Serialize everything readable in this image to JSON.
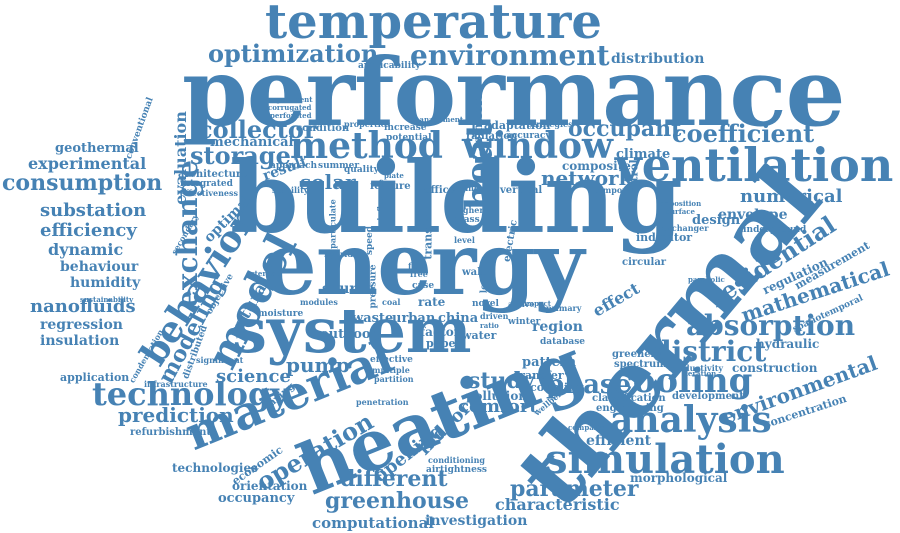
{
  "style": {
    "text_color": "#4682b4",
    "background": "#ffffff"
  },
  "words": [
    {
      "text": "performance",
      "rank": 1
    },
    {
      "text": "building",
      "rank": 1
    },
    {
      "text": "thermal",
      "rank": 1
    },
    {
      "text": "energy",
      "rank": 1
    },
    {
      "text": "heating",
      "rank": 2
    },
    {
      "text": "system",
      "rank": 2
    },
    {
      "text": "temperature",
      "rank": 2
    },
    {
      "text": "ventilation",
      "rank": 2
    },
    {
      "text": "material",
      "rank": 2
    },
    {
      "text": "simulation",
      "rank": 2
    },
    {
      "text": "method",
      "rank": 3
    },
    {
      "text": "window",
      "rank": 3
    },
    {
      "text": "model",
      "rank": 3
    },
    {
      "text": "behavior",
      "rank": 3
    },
    {
      "text": "cooling",
      "rank": 3
    },
    {
      "text": "analysis",
      "rank": 3
    },
    {
      "text": "environment",
      "rank": 3
    },
    {
      "text": "technology",
      "rank": 3
    },
    {
      "text": "heat",
      "rank": 3
    },
    {
      "text": "absorption",
      "rank": 4
    },
    {
      "text": "exchange",
      "rank": 4
    },
    {
      "text": "residential",
      "rank": 4
    },
    {
      "text": "district",
      "rank": 4
    },
    {
      "text": "coefficient",
      "rank": 4
    },
    {
      "text": "collector",
      "rank": 4
    },
    {
      "text": "occupant",
      "rank": 4
    },
    {
      "text": "storage",
      "rank": 4
    },
    {
      "text": "optimization",
      "rank": 4
    },
    {
      "text": "greenhouse",
      "rank": 4
    },
    {
      "text": "parameter",
      "rank": 4
    },
    {
      "text": "operation",
      "rank": 4
    },
    {
      "text": "prediction",
      "rank": 4
    },
    {
      "text": "consumption",
      "rank": 4
    },
    {
      "text": "mathematical",
      "rank": 4
    },
    {
      "text": "environmental",
      "rank": 4
    },
    {
      "text": "phase",
      "rank": 4
    },
    {
      "text": "modeling",
      "rank": 4
    },
    {
      "text": "study",
      "rank": 4
    },
    {
      "text": "different",
      "rank": 4
    },
    {
      "text": "characteristic",
      "rank": 5
    },
    {
      "text": "computational",
      "rank": 5
    },
    {
      "text": "investigation",
      "rank": 5
    },
    {
      "text": "numerical",
      "rank": 5
    },
    {
      "text": "network",
      "rank": 5
    },
    {
      "text": "solar",
      "rank": 5
    },
    {
      "text": "pump",
      "rank": 5
    },
    {
      "text": "science",
      "rank": 5
    },
    {
      "text": "comfort",
      "rank": 5
    },
    {
      "text": "opening",
      "rank": 5
    },
    {
      "text": "indoor",
      "rank": 5
    },
    {
      "text": "efficiency",
      "rank": 5
    },
    {
      "text": "substation",
      "rank": 5
    },
    {
      "text": "experimental",
      "rank": 5
    },
    {
      "text": "dynamic",
      "rank": 5
    },
    {
      "text": "behaviour",
      "rank": 5
    },
    {
      "text": "humidity",
      "rank": 5
    },
    {
      "text": "nanofluids",
      "rank": 5
    },
    {
      "text": "regression",
      "rank": 5
    },
    {
      "text": "insulation",
      "rank": 5
    },
    {
      "text": "geothermal",
      "rank": 5
    },
    {
      "text": "distribution",
      "rank": 5
    },
    {
      "text": "evaluation",
      "rank": 5
    },
    {
      "text": "envelope",
      "rank": 5
    },
    {
      "text": "efficient",
      "rank": 5
    },
    {
      "text": "morphological",
      "rank": 5
    },
    {
      "text": "mechanical",
      "rank": 5
    },
    {
      "text": "climate",
      "rank": 5
    },
    {
      "text": "design",
      "rank": 5
    },
    {
      "text": "region",
      "rank": 5
    },
    {
      "text": "effect",
      "rank": 5
    },
    {
      "text": "natural",
      "rank": 5
    },
    {
      "text": "optimal",
      "rank": 5
    },
    {
      "text": "result",
      "rank": 5
    },
    {
      "text": "source",
      "rank": 5
    },
    {
      "text": "urban",
      "rank": 5
    },
    {
      "text": "china",
      "rank": 5
    },
    {
      "text": "waste",
      "rank": 5
    },
    {
      "text": "outdoor",
      "rank": 5
    },
    {
      "text": "application",
      "rank": 5
    },
    {
      "text": "technologies",
      "rank": 5
    },
    {
      "text": "orientation",
      "rank": 5
    },
    {
      "text": "occupancy",
      "rank": 5
    },
    {
      "text": "economic",
      "rank": 5
    },
    {
      "text": "refurbishment",
      "rank": 5
    },
    {
      "text": "regulation",
      "rank": 5
    },
    {
      "text": "measurement",
      "rank": 5
    },
    {
      "text": "hydraulic",
      "rank": 5
    },
    {
      "text": "construction",
      "rank": 5
    },
    {
      "text": "concentration",
      "rank": 5
    },
    {
      "text": "development",
      "rank": 5
    },
    {
      "text": "engineering",
      "rank": 5
    },
    {
      "text": "classification",
      "rank": 5
    },
    {
      "text": "greenery",
      "rank": 5
    },
    {
      "text": "spectrum",
      "rank": 5
    },
    {
      "text": "pattern",
      "rank": 5
    },
    {
      "text": "transfer",
      "rank": 5
    },
    {
      "text": "coupling",
      "rank": 5
    },
    {
      "text": "pollution",
      "rank": 5
    },
    {
      "text": "composite",
      "rank": 5
    },
    {
      "text": "control",
      "rank": 5
    },
    {
      "text": "condition",
      "rank": 5
    },
    {
      "text": "adaptation",
      "rank": 5
    },
    {
      "text": "radiation",
      "rank": 5
    },
    {
      "text": "accuracy",
      "rank": 5
    },
    {
      "text": "emission",
      "rank": 5
    },
    {
      "text": "architecture",
      "rank": 5
    },
    {
      "text": "integrated",
      "rank": 5
    },
    {
      "text": "effectiveness",
      "rank": 5
    },
    {
      "text": "applicability",
      "rank": 5
    },
    {
      "text": "conventional",
      "rank": 5
    },
    {
      "text": "spatiotemporal",
      "rank": 5
    },
    {
      "text": "indicator",
      "rank": 5
    },
    {
      "text": "underground",
      "rank": 5
    },
    {
      "text": "circular",
      "rank": 5
    },
    {
      "text": "feature",
      "rank": 5
    },
    {
      "text": "office",
      "rank": 5
    },
    {
      "text": "vertical",
      "rank": 5
    },
    {
      "text": "database",
      "rank": 5
    },
    {
      "text": "rate",
      "rank": 5
    },
    {
      "text": "factor",
      "rank": 5
    },
    {
      "text": "paper",
      "rank": 5
    },
    {
      "text": "water",
      "rank": 5
    },
    {
      "text": "case",
      "rank": 5
    },
    {
      "text": "winter",
      "rank": 5
    },
    {
      "text": "novel",
      "rank": 5
    },
    {
      "text": "wall",
      "rank": 5
    },
    {
      "text": "airtightness",
      "rank": 5
    },
    {
      "text": "conditioning",
      "rank": 5
    },
    {
      "text": "infrastructure",
      "rank": 5
    },
    {
      "text": "saving",
      "rank": 5
    },
    {
      "text": "significant",
      "rank": 5
    },
    {
      "text": "stability",
      "rank": 5
    },
    {
      "text": "approach",
      "rank": 5
    },
    {
      "text": "summer",
      "rank": 5
    },
    {
      "text": "quality",
      "rank": 5
    },
    {
      "text": "increase",
      "rank": 5
    },
    {
      "text": "potential",
      "rank": 5
    },
    {
      "text": "strategies",
      "rank": 5
    },
    {
      "text": "properties",
      "rank": 5
    },
    {
      "text": "temporal",
      "rank": 5
    },
    {
      "text": "moisture",
      "rank": 5
    },
    {
      "text": "modules",
      "rank": 5
    },
    {
      "text": "pressure",
      "rank": 5
    },
    {
      "text": "penetration",
      "rank": 5
    },
    {
      "text": "effective",
      "rank": 5
    },
    {
      "text": "multiple",
      "rank": 5
    },
    {
      "text": "partition",
      "rank": 5
    },
    {
      "text": "glass",
      "rank": 5
    },
    {
      "text": "higher",
      "rank": 5
    },
    {
      "text": "transient",
      "rank": 5
    },
    {
      "text": "speed",
      "rank": 5
    },
    {
      "text": "level",
      "rank": 5
    },
    {
      "text": "electric",
      "rank": 5
    },
    {
      "text": "active",
      "rank": 5
    },
    {
      "text": "exchanger",
      "rank": 5
    },
    {
      "text": "conductivity",
      "rank": 5
    },
    {
      "text": "wellbeing",
      "rank": 5
    },
    {
      "text": "primary",
      "rank": 5
    },
    {
      "text": "driven",
      "rank": 5
    },
    {
      "text": "cleaner",
      "rank": 5
    },
    {
      "text": "secondary",
      "rank": 5
    },
    {
      "text": "coal",
      "rank": 5
    },
    {
      "text": "objective",
      "rank": 5
    },
    {
      "text": "distributed",
      "rank": 5
    },
    {
      "text": "sustainability",
      "rank": 5
    },
    {
      "text": "condensation",
      "rank": 5
    },
    {
      "text": "iteration",
      "rank": 5
    },
    {
      "text": "comparison",
      "rank": 5
    },
    {
      "text": "experiment",
      "rank": 5
    },
    {
      "text": "corrugated",
      "rank": 5
    },
    {
      "text": "perforated",
      "rank": 5
    },
    {
      "text": "flow",
      "rank": 5
    },
    {
      "text": "free",
      "rank": 5
    },
    {
      "text": "plate",
      "rank": 5
    },
    {
      "text": "deposition",
      "rank": 5
    },
    {
      "text": "surface",
      "rank": 5
    },
    {
      "text": "parabolic",
      "rank": 5
    },
    {
      "text": "particulate",
      "rank": 5
    },
    {
      "text": "influence",
      "rank": 5
    },
    {
      "text": "hybrid",
      "rank": 5
    },
    {
      "text": "management",
      "rank": 5
    },
    {
      "text": "load",
      "rank": 5
    },
    {
      "text": "impact",
      "rank": 5
    },
    {
      "text": "external",
      "rank": 5
    },
    {
      "text": "ratio",
      "rank": 5
    }
  ]
}
